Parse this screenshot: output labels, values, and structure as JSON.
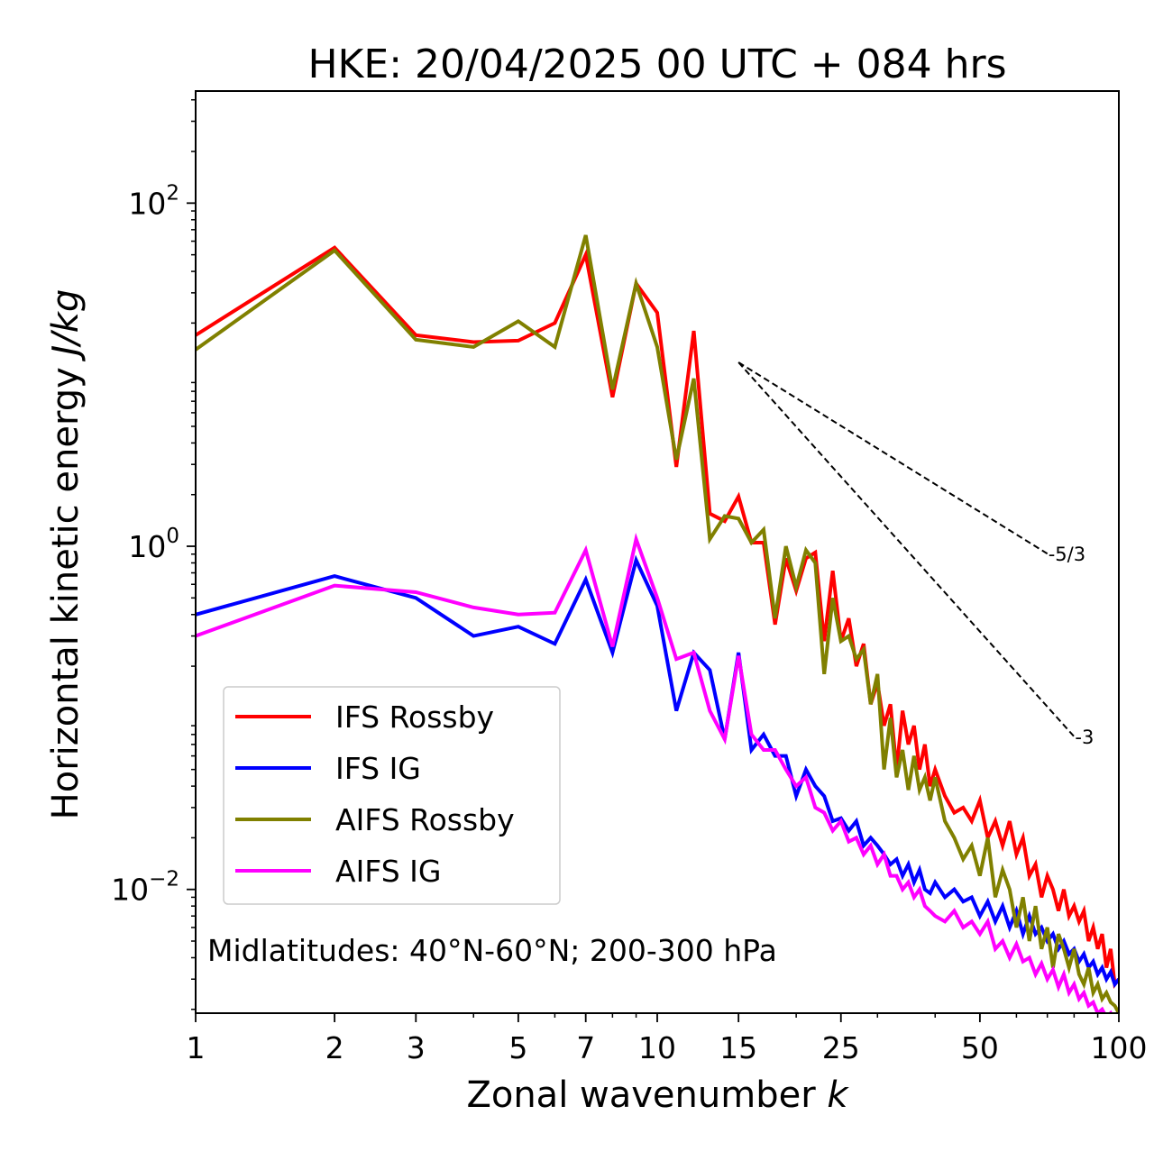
{
  "chart_data": {
    "type": "line",
    "title": "HKE: 20/04/2025 00 UTC + 084 hrs",
    "xlabel": "Zonal wavenumber",
    "xlabel_var": "k",
    "ylabel": "Horizontal kinetic energy",
    "ylabel_unit": "J/kg",
    "x_scale": "log",
    "y_scale": "log",
    "xlim": [
      1,
      100
    ],
    "ylim": [
      0.0019,
      450
    ],
    "x_ticks": [
      1,
      2,
      3,
      5,
      7,
      10,
      15,
      25,
      50,
      100
    ],
    "x_tick_labels": [
      "1",
      "2",
      "3",
      "5",
      "7",
      "10",
      "15",
      "25",
      "50",
      "100"
    ],
    "y_ticks": [
      {
        "value": 100,
        "base": "10",
        "exp": "2"
      },
      {
        "value": 1,
        "base": "10",
        "exp": "0"
      },
      {
        "value": 0.01,
        "base": "10",
        "exp": "−2"
      }
    ],
    "grid": false,
    "legend_position": "lower-left",
    "annotation": "Midlatitudes: 40°N-60°N; 200-300 hPa",
    "reference_lines": [
      {
        "label": "-5/3",
        "slope": -1.666667,
        "x_start": 15,
        "x_end": 70,
        "y_start": 11.8
      },
      {
        "label": "-3",
        "slope": -3,
        "x_start": 15,
        "x_end": 80,
        "y_start": 11.8
      }
    ],
    "series": [
      {
        "name": "IFS Rossby",
        "color": "#ff0000",
        "x": [
          1,
          2,
          3,
          4,
          5,
          6,
          7,
          8,
          9,
          10,
          11,
          12,
          13,
          14,
          15,
          16,
          17,
          18,
          19,
          20,
          21,
          22,
          23,
          24,
          25,
          26,
          27,
          28,
          29,
          30,
          31,
          32,
          33,
          34,
          35,
          36,
          37,
          38,
          39,
          40,
          42,
          44,
          46,
          48,
          50,
          52,
          54,
          56,
          58,
          60,
          62,
          64,
          66,
          68,
          70,
          72,
          74,
          76,
          78,
          80,
          82,
          84,
          86,
          88,
          90,
          92,
          94,
          96,
          98,
          100
        ],
        "y": [
          17,
          55,
          17,
          15.5,
          15.8,
          20,
          50,
          7.4,
          34,
          23,
          2.9,
          18,
          1.55,
          1.4,
          1.95,
          1.05,
          1.05,
          0.35,
          0.85,
          0.55,
          0.85,
          0.92,
          0.28,
          0.72,
          0.28,
          0.38,
          0.2,
          0.27,
          0.12,
          0.16,
          0.09,
          0.12,
          0.05,
          0.11,
          0.07,
          0.09,
          0.05,
          0.07,
          0.04,
          0.05,
          0.035,
          0.028,
          0.03,
          0.025,
          0.033,
          0.02,
          0.025,
          0.018,
          0.025,
          0.016,
          0.02,
          0.012,
          0.014,
          0.009,
          0.012,
          0.01,
          0.0075,
          0.01,
          0.007,
          0.008,
          0.0065,
          0.0075,
          0.005,
          0.006,
          0.0045,
          0.0055,
          0.0035,
          0.0045,
          0.0028,
          0.003
        ]
      },
      {
        "name": "IFS IG",
        "color": "#0000ff",
        "x": [
          1,
          2,
          3,
          4,
          5,
          6,
          7,
          8,
          9,
          10,
          11,
          12,
          13,
          14,
          15,
          16,
          17,
          18,
          19,
          20,
          21,
          22,
          23,
          24,
          25,
          26,
          27,
          28,
          29,
          30,
          31,
          32,
          33,
          34,
          35,
          36,
          37,
          38,
          39,
          40,
          42,
          44,
          46,
          48,
          50,
          52,
          54,
          56,
          58,
          60,
          62,
          64,
          66,
          68,
          70,
          72,
          74,
          76,
          78,
          80,
          82,
          84,
          86,
          88,
          90,
          92,
          94,
          96,
          98,
          100
        ],
        "y": [
          0.4,
          0.67,
          0.5,
          0.3,
          0.34,
          0.27,
          0.64,
          0.24,
          0.83,
          0.45,
          0.11,
          0.24,
          0.19,
          0.075,
          0.24,
          0.065,
          0.08,
          0.06,
          0.06,
          0.035,
          0.05,
          0.04,
          0.035,
          0.025,
          0.026,
          0.022,
          0.025,
          0.018,
          0.02,
          0.018,
          0.016,
          0.014,
          0.015,
          0.012,
          0.014,
          0.011,
          0.013,
          0.01,
          0.0095,
          0.011,
          0.009,
          0.01,
          0.0085,
          0.009,
          0.007,
          0.0085,
          0.0065,
          0.008,
          0.006,
          0.0075,
          0.0055,
          0.007,
          0.0055,
          0.006,
          0.005,
          0.0055,
          0.0045,
          0.005,
          0.0042,
          0.0045,
          0.0038,
          0.0042,
          0.0035,
          0.0038,
          0.0032,
          0.0035,
          0.003,
          0.0033,
          0.0028,
          0.003
        ]
      },
      {
        "name": "AIFS Rossby",
        "color": "#808000",
        "x": [
          1,
          2,
          3,
          4,
          5,
          6,
          7,
          8,
          9,
          10,
          11,
          12,
          13,
          14,
          15,
          16,
          17,
          18,
          19,
          20,
          21,
          22,
          23,
          24,
          25,
          26,
          27,
          28,
          29,
          30,
          31,
          32,
          33,
          34,
          35,
          36,
          37,
          38,
          39,
          40,
          42,
          44,
          46,
          48,
          50,
          52,
          54,
          56,
          58,
          60,
          62,
          64,
          66,
          68,
          70,
          72,
          74,
          76,
          78,
          80,
          82,
          84,
          86,
          88,
          90,
          92,
          94,
          96,
          98,
          100
        ],
        "y": [
          14,
          53,
          16,
          14.5,
          20.5,
          14.5,
          65,
          8.2,
          34,
          14.5,
          3.2,
          9.5,
          1.1,
          1.5,
          1.45,
          1.05,
          1.25,
          0.38,
          1.0,
          0.58,
          0.95,
          0.8,
          0.18,
          0.5,
          0.28,
          0.3,
          0.22,
          0.25,
          0.12,
          0.18,
          0.05,
          0.1,
          0.045,
          0.065,
          0.038,
          0.06,
          0.038,
          0.045,
          0.033,
          0.045,
          0.025,
          0.02,
          0.015,
          0.018,
          0.012,
          0.02,
          0.009,
          0.013,
          0.01,
          0.006,
          0.009,
          0.005,
          0.008,
          0.0045,
          0.006,
          0.0035,
          0.0055,
          0.0045,
          0.0035,
          0.0045,
          0.0032,
          0.0028,
          0.0035,
          0.0025,
          0.0028,
          0.0023,
          0.0025,
          0.0022,
          0.0021,
          0.0019
        ]
      },
      {
        "name": "AIFS IG",
        "color": "#ff00ff",
        "x": [
          1,
          2,
          3,
          4,
          5,
          6,
          7,
          8,
          9,
          10,
          11,
          12,
          13,
          14,
          15,
          16,
          17,
          18,
          19,
          20,
          21,
          22,
          23,
          24,
          25,
          26,
          27,
          28,
          29,
          30,
          31,
          32,
          33,
          34,
          35,
          36,
          37,
          38,
          39,
          40,
          42,
          44,
          46,
          48,
          50,
          52,
          54,
          56,
          58,
          60,
          62,
          64,
          66,
          68,
          70,
          72,
          74,
          76,
          78,
          80,
          82,
          84,
          86,
          88,
          90,
          92,
          94,
          96,
          98,
          100
        ],
        "y": [
          0.3,
          0.59,
          0.54,
          0.44,
          0.4,
          0.41,
          0.95,
          0.26,
          1.1,
          0.5,
          0.22,
          0.24,
          0.11,
          0.075,
          0.23,
          0.08,
          0.065,
          0.065,
          0.05,
          0.04,
          0.045,
          0.03,
          0.028,
          0.022,
          0.025,
          0.019,
          0.02,
          0.016,
          0.018,
          0.014,
          0.016,
          0.012,
          0.012,
          0.01,
          0.011,
          0.009,
          0.01,
          0.008,
          0.0075,
          0.007,
          0.0065,
          0.0075,
          0.006,
          0.0065,
          0.0055,
          0.0065,
          0.0045,
          0.005,
          0.004,
          0.0048,
          0.0038,
          0.004,
          0.0032,
          0.0037,
          0.003,
          0.0034,
          0.0027,
          0.0032,
          0.0025,
          0.0028,
          0.0023,
          0.0025,
          0.0021,
          0.0022,
          0.0019,
          0.002,
          0.0018,
          0.0019,
          0.0017,
          0.0017
        ]
      }
    ]
  }
}
